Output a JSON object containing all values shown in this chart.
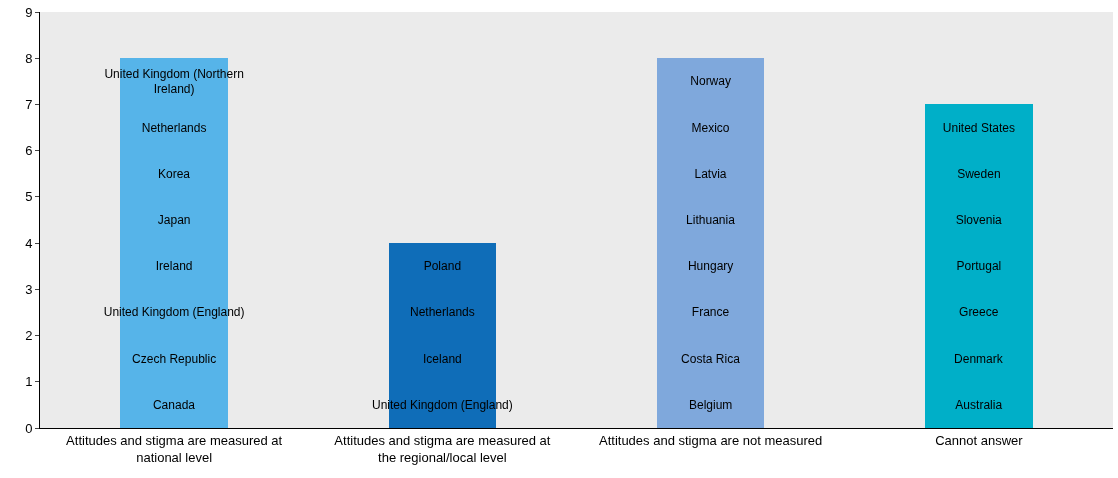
{
  "chart_data": {
    "type": "bar",
    "stacked": true,
    "categories": [
      "Attitudes and stigma are measured at national level",
      "Attitudes and stigma are measured at the regional/local level",
      "Attitudes and stigma are not measured",
      "Cannot answer"
    ],
    "ylim": [
      0,
      9
    ],
    "yticks": [
      0,
      1,
      2,
      3,
      4,
      5,
      6,
      7,
      8,
      9
    ],
    "grid": false,
    "series": [
      {
        "colors": [
          "#56b4e9",
          "#0f6db8",
          "#7fa8dc",
          "#00afc8"
        ],
        "values": [
          1,
          1,
          1,
          1
        ],
        "value_labels": [
          "Canada",
          "United Kingdom (England)",
          "Belgium",
          "Australia"
        ]
      },
      {
        "colors": [
          "#56b4e9",
          "#0f6db8",
          "#7fa8dc",
          "#00afc8"
        ],
        "values": [
          1,
          1,
          1,
          1
        ],
        "value_labels": [
          "Czech Republic",
          "Iceland",
          "Costa Rica",
          "Denmark"
        ]
      },
      {
        "colors": [
          "#56b4e9",
          "#0f6db8",
          "#7fa8dc",
          "#00afc8"
        ],
        "values": [
          1,
          1,
          1,
          1
        ],
        "value_labels": [
          "United Kingdom (England)",
          "Netherlands",
          "France",
          "Greece"
        ]
      },
      {
        "colors": [
          "#56b4e9",
          "#0f6db8",
          "#7fa8dc",
          "#00afc8"
        ],
        "values": [
          1,
          1,
          1,
          1
        ],
        "value_labels": [
          "Ireland",
          "Poland",
          "Hungary",
          "Portugal"
        ]
      },
      {
        "colors": [
          "#56b4e9",
          "#0f6db8",
          "#7fa8dc",
          "#00afc8"
        ],
        "values": [
          1,
          null,
          1,
          1
        ],
        "value_labels": [
          "Japan",
          null,
          "Lithuania",
          "Slovenia"
        ]
      },
      {
        "colors": [
          "#56b4e9",
          "#0f6db8",
          "#7fa8dc",
          "#00afc8"
        ],
        "values": [
          1,
          null,
          1,
          1
        ],
        "value_labels": [
          "Korea",
          null,
          "Latvia",
          "Sweden"
        ]
      },
      {
        "colors": [
          "#56b4e9",
          "#0f6db8",
          "#7fa8dc",
          "#00afc8"
        ],
        "values": [
          1,
          null,
          1,
          1
        ],
        "value_labels": [
          "Netherlands",
          null,
          "Mexico",
          "United States"
        ]
      },
      {
        "colors": [
          "#56b4e9",
          "#0f6db8",
          "#7fa8dc",
          "#00afc8"
        ],
        "values": [
          1,
          null,
          1,
          null
        ],
        "value_labels": [
          "United Kingdom (Northern Ireland)",
          null,
          "Norway",
          null
        ]
      }
    ]
  }
}
